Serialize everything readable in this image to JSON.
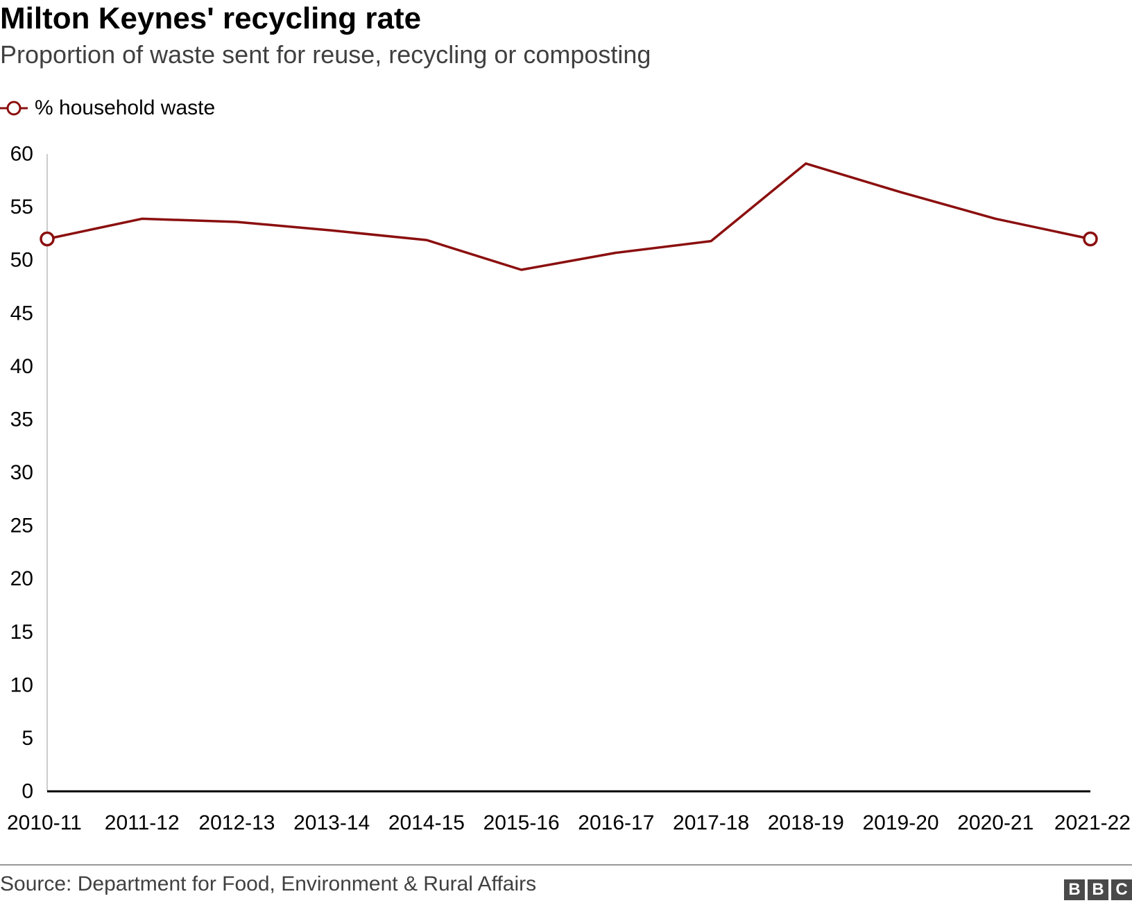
{
  "title": "Milton Keynes' recycling rate",
  "subtitle": "Proportion of waste sent for reuse, recycling or composting",
  "source": "Source: Department for Food, Environment & Rural Affairs",
  "logo_letters": [
    "B",
    "B",
    "C"
  ],
  "colors": {
    "series": "#8b0f0f",
    "axis": "#000000",
    "y_axis_line": "#cccccc"
  },
  "chart_data": {
    "type": "line",
    "categories": [
      "2010-11",
      "2011-12",
      "2012-13",
      "2013-14",
      "2014-15",
      "2015-16",
      "2016-17",
      "2017-18",
      "2018-19",
      "2019-20",
      "2020-21",
      "2021-22"
    ],
    "series": [
      {
        "name": "% household waste",
        "values": [
          52.0,
          53.9,
          53.6,
          52.8,
          51.9,
          49.1,
          50.7,
          51.8,
          59.1,
          56.4,
          53.9,
          52.0
        ],
        "markers": "first-and-last"
      }
    ],
    "yticks": [
      0,
      5,
      10,
      15,
      20,
      25,
      30,
      35,
      40,
      45,
      50,
      55,
      60
    ],
    "ylim": [
      0,
      60
    ],
    "xlabel": "",
    "ylabel": "",
    "grid": false,
    "legend": "top-left"
  }
}
